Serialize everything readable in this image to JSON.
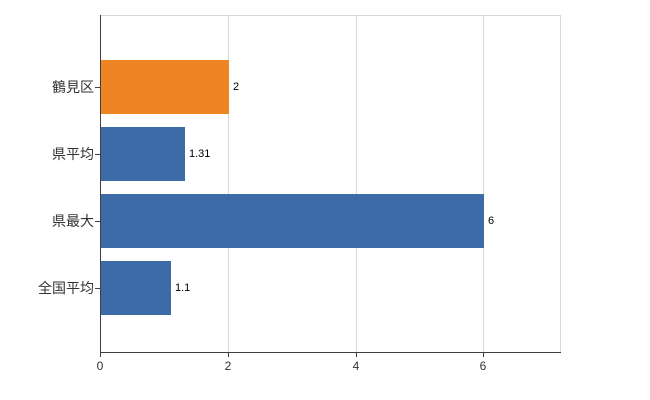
{
  "chart_data": {
    "type": "bar",
    "orientation": "horizontal",
    "title": "",
    "xlabel": "",
    "ylabel": "",
    "categories": [
      "鶴見区",
      "県平均",
      "県最大",
      "全国平均"
    ],
    "values": [
      2,
      1.31,
      6,
      1.1
    ],
    "value_labels": [
      "2",
      "1.31",
      "6",
      "1.1"
    ],
    "bar_colors": [
      "#ef8522",
      "#3c6ba8",
      "#3c6ba8",
      "#3c6ba8"
    ],
    "x_ticks": [
      0,
      2,
      4,
      6
    ],
    "x_tick_labels": [
      "0",
      "2",
      "4",
      "6"
    ],
    "xlim": [
      0,
      7.2
    ],
    "grid": "vertical",
    "legend": "none"
  },
  "colors": {
    "background": "#ffffff",
    "axis": "#404040",
    "gridline": "#d9d9d9",
    "tick_text": "#333333",
    "value_text": "#000000"
  }
}
